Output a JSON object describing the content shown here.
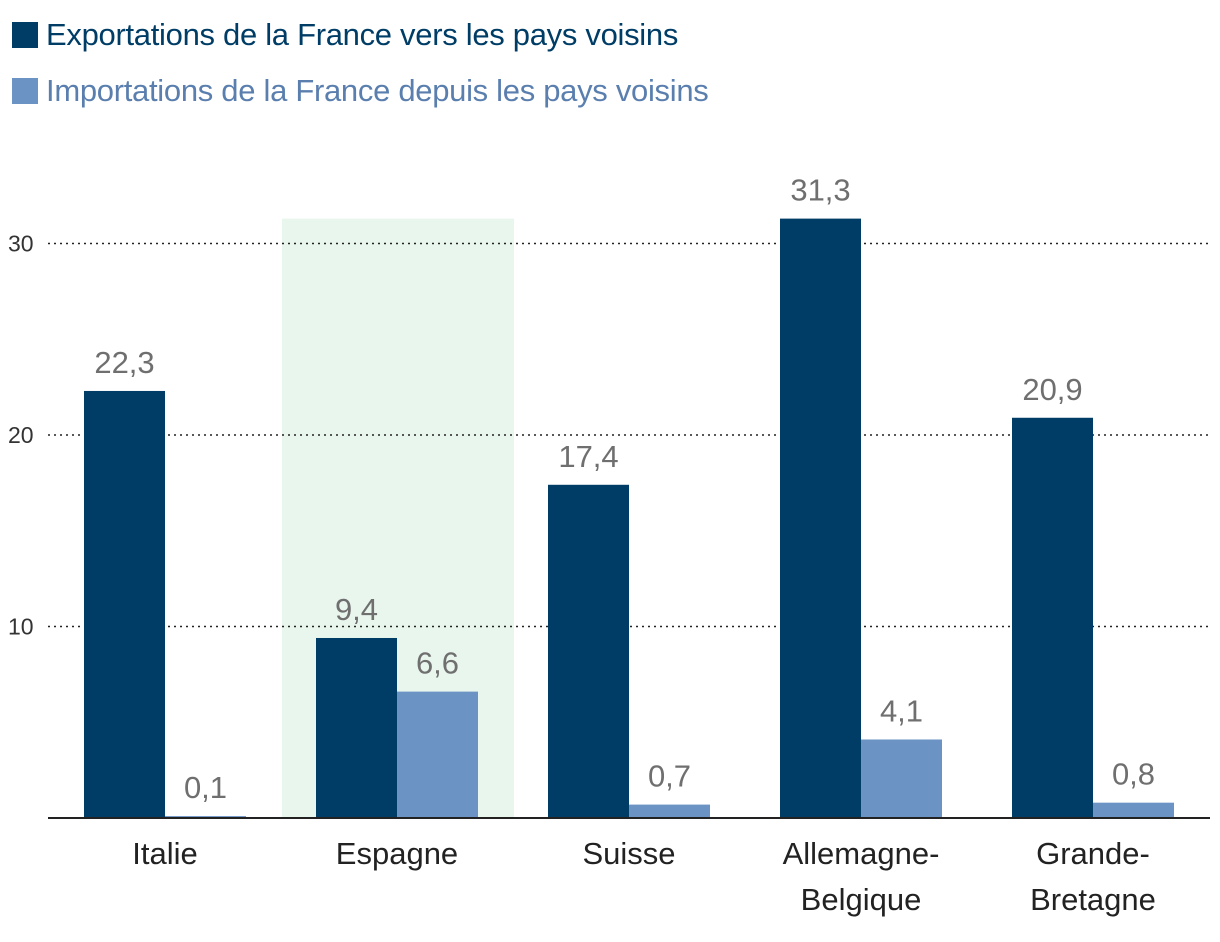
{
  "chart_data": {
    "type": "bar",
    "categories": [
      [
        "Italie"
      ],
      [
        "Espagne"
      ],
      [
        "Suisse"
      ],
      [
        "Allemagne-",
        "Belgique"
      ],
      [
        "Grande-",
        "Bretagne"
      ]
    ],
    "series": [
      {
        "name": "Exportations de la France vers les pays voisins",
        "color": "#003d66",
        "values": [
          22.3,
          9.4,
          17.4,
          31.3,
          20.9
        ],
        "labels": [
          "22,3",
          "9,4",
          "17,4",
          "31,3",
          "20,9"
        ]
      },
      {
        "name": "Importations de la France depuis les pays voisins",
        "color": "#6b93c4",
        "values": [
          0.1,
          6.6,
          0.7,
          4.1,
          0.8
        ],
        "labels": [
          "0,1",
          "6,6",
          "0,7",
          "4,1",
          "0,8"
        ]
      }
    ],
    "ylim": [
      0,
      32
    ],
    "yticks": [
      10,
      20,
      30
    ],
    "ytick_labels": [
      "10",
      "20",
      "30"
    ],
    "grid": true,
    "highlighted_category": "Espagne",
    "highlight_color": "#e9f6ee",
    "legend_position": "top-left",
    "xlabel": "",
    "ylabel": ""
  }
}
